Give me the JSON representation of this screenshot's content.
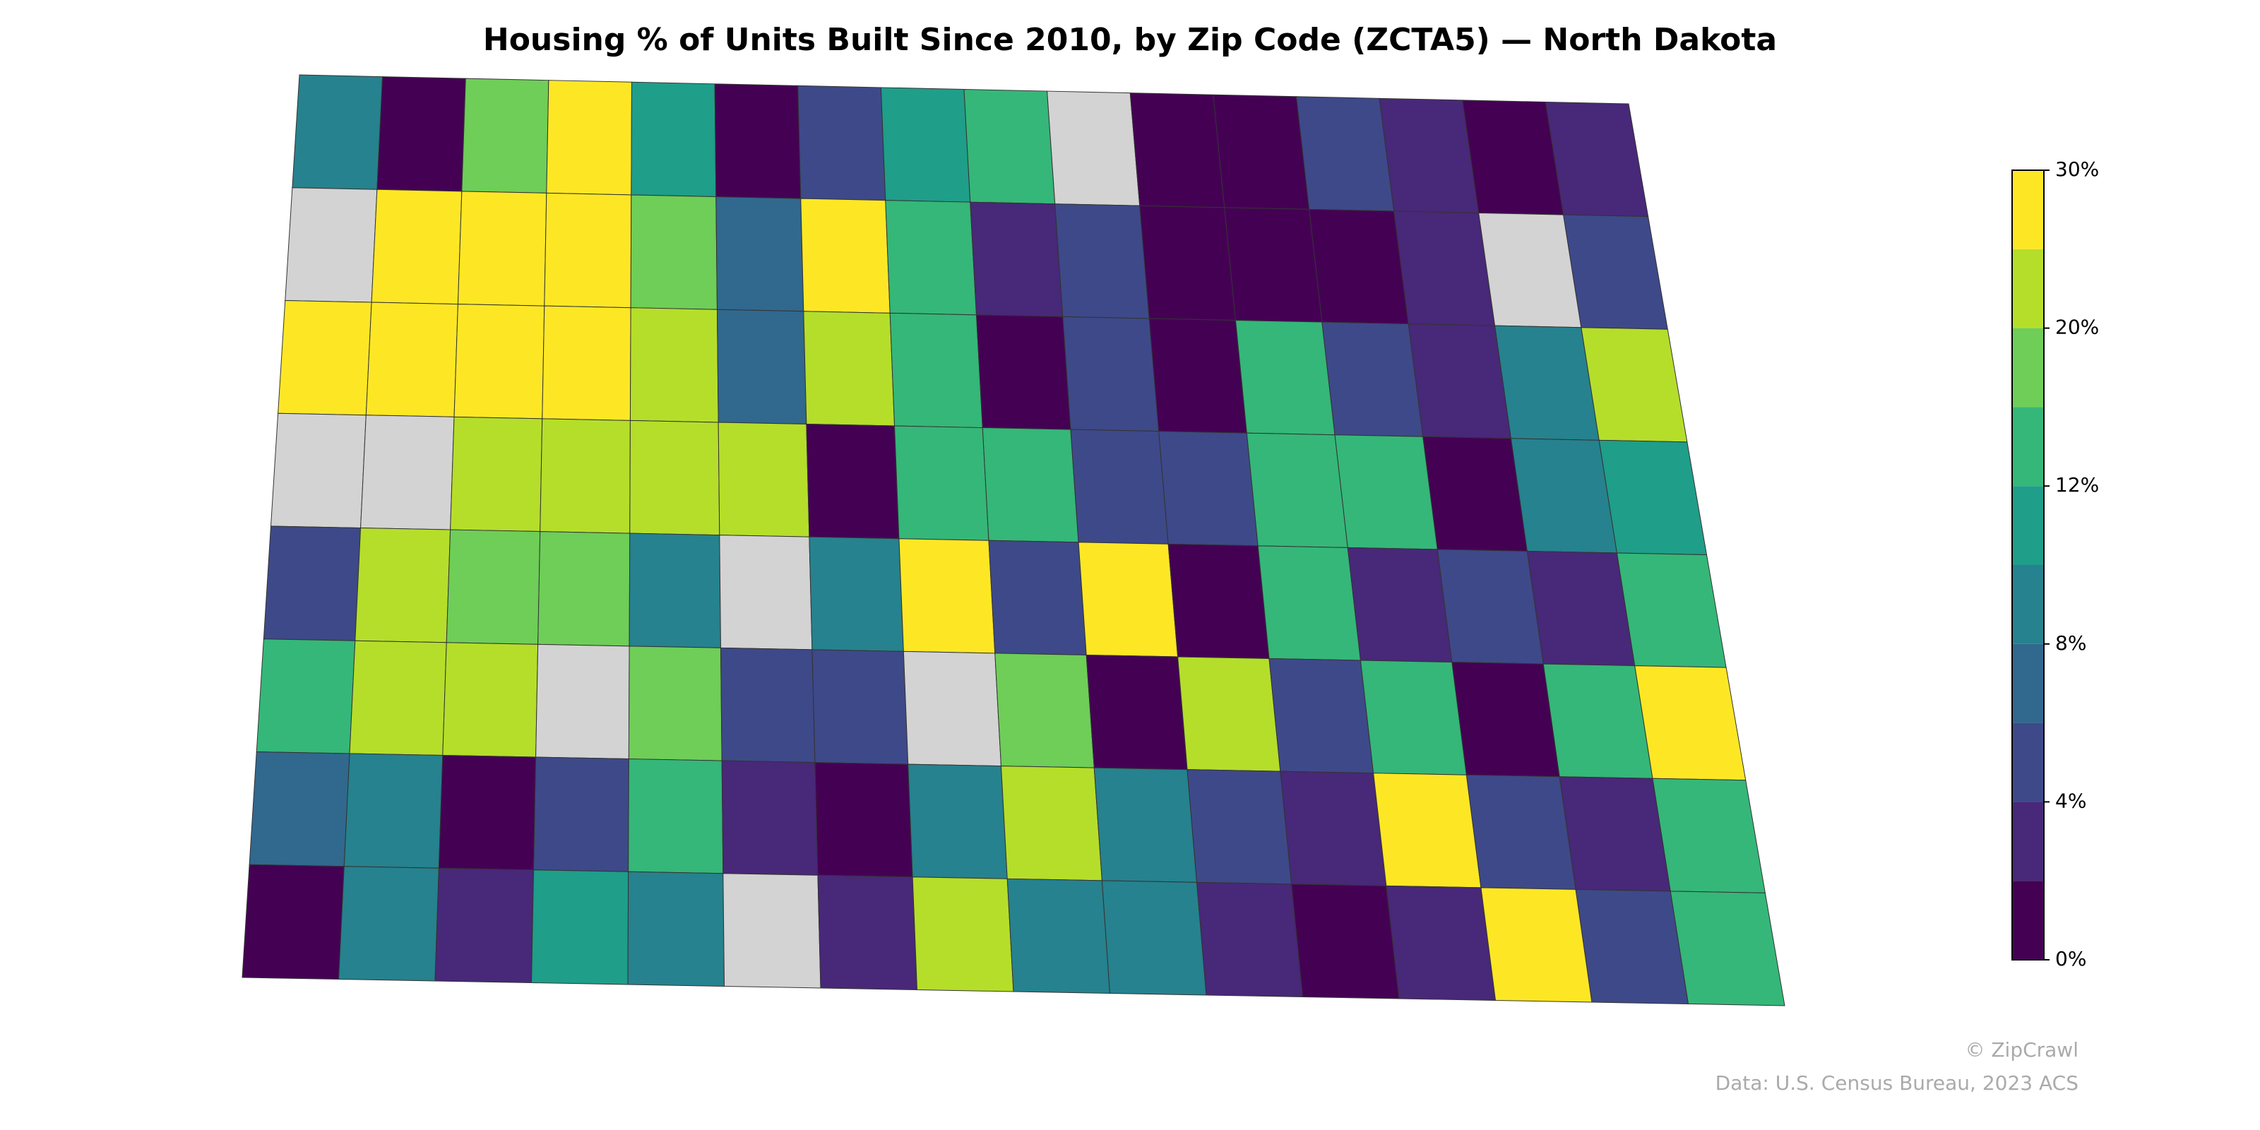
{
  "chart_data": {
    "type": "choropleth",
    "title": "Housing % of Units Built Since 2010, by Zip Code (ZCTA5) — North Dakota",
    "values": [
      [
        9,
        1,
        18,
        28,
        10,
        1,
        4,
        11,
        14,
        null,
        1,
        1,
        5,
        3,
        1,
        3
      ],
      [
        null,
        28,
        28,
        28,
        18,
        6,
        28,
        12,
        3,
        5,
        1,
        1,
        1,
        3,
        null,
        5
      ],
      [
        28,
        28,
        28,
        28,
        22,
        6,
        22,
        12,
        1,
        5,
        1,
        14,
        4,
        3,
        8,
        22
      ],
      [
        null,
        null,
        20,
        20,
        22,
        22,
        1,
        14,
        12,
        5,
        4,
        14,
        12,
        1,
        8,
        10
      ],
      [
        5,
        22,
        18,
        16,
        8,
        null,
        8,
        28,
        4,
        28,
        1,
        14,
        3,
        4,
        3,
        12
      ],
      [
        14,
        22,
        22,
        null,
        16,
        5,
        5,
        null,
        16,
        1,
        22,
        5,
        12,
        1,
        14,
        28
      ],
      [
        6,
        8,
        1,
        5,
        14,
        3,
        1,
        8,
        22,
        8,
        5,
        3,
        28,
        5,
        3,
        12
      ],
      [
        1,
        8,
        3,
        10,
        8,
        null,
        3,
        22,
        8,
        8,
        3,
        1,
        3,
        28,
        4,
        14
      ]
    ],
    "missing_color": "#d3d3d3",
    "bins": [
      0,
      2,
      4,
      6,
      8,
      10,
      12,
      16,
      20,
      25,
      30
    ],
    "colors": [
      "#440154",
      "#482878",
      "#3e4989",
      "#31688e",
      "#26828e",
      "#1f9e89",
      "#35b779",
      "#6ece58",
      "#b5de2b",
      "#fde725"
    ],
    "clim": [
      0,
      30
    ],
    "cticks": [
      {
        "value": 0,
        "label": "0%"
      },
      {
        "value": 4,
        "label": "4%"
      },
      {
        "value": 8,
        "label": "8%"
      },
      {
        "value": 12,
        "label": "12%"
      },
      {
        "value": 20,
        "label": "20%"
      },
      {
        "value": 30,
        "label": "30%"
      }
    ],
    "credits": [
      "© ZipCrawl",
      "Data: U.S. Census Bureau, 2023 ACS"
    ]
  }
}
